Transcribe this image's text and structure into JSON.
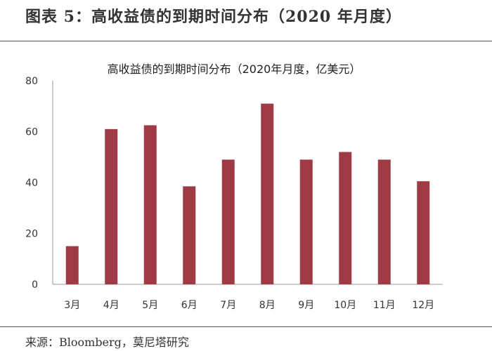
{
  "figure": {
    "title": "图表 5：高收益债的到期时间分布（2020 年月度）",
    "source": "来源：Bloomberg，莫尼塔研究"
  },
  "colors": {
    "bar": "#9e3b45",
    "axis": "#999999"
  },
  "chart_data": {
    "type": "bar",
    "title": "高收益债的到期时间分布（2020年月度，亿美元）",
    "xlabel": "",
    "ylabel": "",
    "categories": [
      "3月",
      "4月",
      "5月",
      "6月",
      "7月",
      "8月",
      "9月",
      "10月",
      "11月",
      "12月"
    ],
    "values": [
      15,
      61,
      62.5,
      38.5,
      49,
      71,
      49,
      52,
      49,
      40.5
    ],
    "ylim": [
      0,
      80
    ],
    "yticks": [
      "0",
      "20",
      "40",
      "60",
      "80"
    ],
    "grid": false,
    "legend": "none"
  }
}
